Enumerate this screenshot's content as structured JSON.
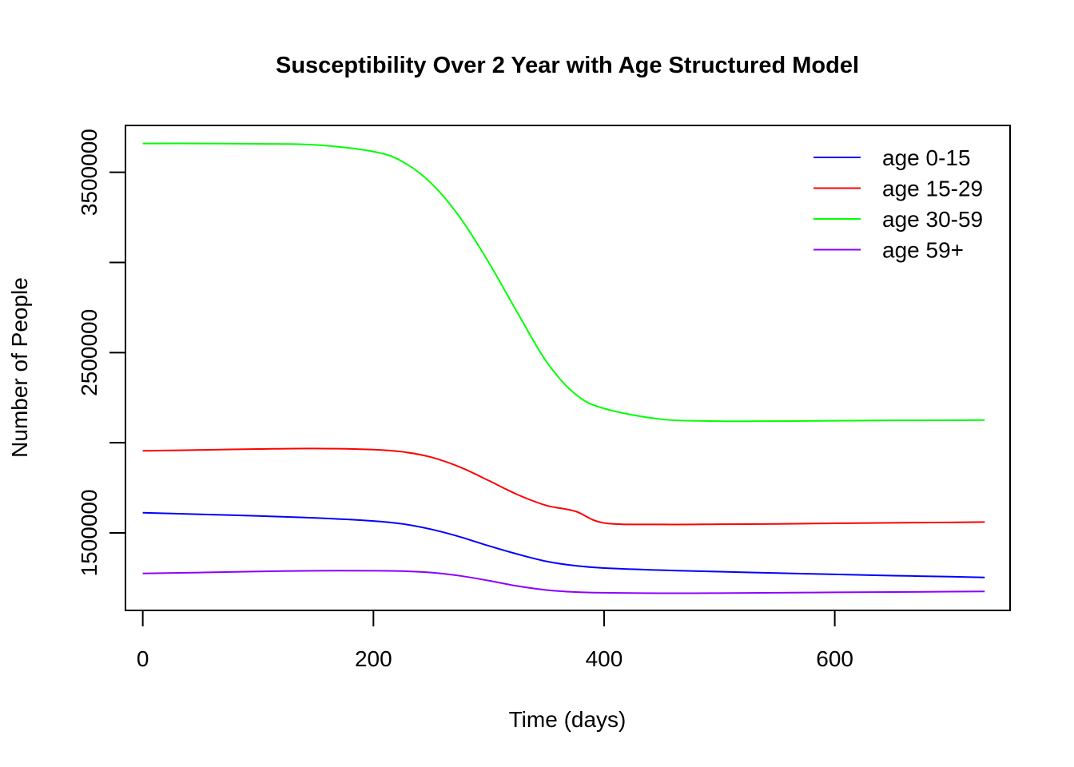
{
  "chart_data": {
    "type": "line",
    "title": "Susceptibility Over 2 Year with Age Structured Model",
    "xlabel": "Time (days)",
    "ylabel": "Number of People",
    "xlim": [
      -15,
      752
    ],
    "ylim": [
      1070000,
      3760000
    ],
    "xticks": [
      0,
      200,
      400,
      600
    ],
    "xtick_labels": [
      "0",
      "200",
      "400",
      "600"
    ],
    "yticks": [
      1500000,
      2000000,
      2500000,
      3000000,
      3500000
    ],
    "ytick_labels": [
      "1500000",
      "",
      "2500000",
      "",
      "3500000"
    ],
    "grid": false,
    "legend_position": "top-right",
    "x": [
      0,
      50,
      100,
      150,
      200,
      225,
      250,
      275,
      300,
      325,
      350,
      375,
      400,
      450,
      500,
      550,
      600,
      650,
      700,
      730
    ],
    "series": [
      {
        "name": "age 0-15",
        "color": "#0000ff",
        "values": [
          1612000,
          1603000,
          1594000,
          1583000,
          1566000,
          1550000,
          1520000,
          1478000,
          1428000,
          1382000,
          1342000,
          1318000,
          1305000,
          1293000,
          1285000,
          1277000,
          1270000,
          1263000,
          1257000,
          1253000
        ]
      },
      {
        "name": "age 15-29",
        "color": "#ff0000",
        "values": [
          1955000,
          1960000,
          1965000,
          1968000,
          1962000,
          1950000,
          1920000,
          1865000,
          1790000,
          1712000,
          1652000,
          1620000,
          1555000,
          1547000,
          1548000,
          1550000,
          1553000,
          1556000,
          1558000,
          1560000
        ]
      },
      {
        "name": "age 30-59",
        "color": "#00ff00",
        "values": [
          3660000,
          3660000,
          3658000,
          3652000,
          3615000,
          3560000,
          3440000,
          3250000,
          3000000,
          2720000,
          2450000,
          2270000,
          2190000,
          2130000,
          2120000,
          2120000,
          2122000,
          2124000,
          2125000,
          2126000
        ]
      },
      {
        "name": "age 59+",
        "color": "#8b00ff",
        "values": [
          1275000,
          1280000,
          1286000,
          1290000,
          1290000,
          1288000,
          1280000,
          1262000,
          1235000,
          1205000,
          1183000,
          1172000,
          1168000,
          1165000,
          1166000,
          1168000,
          1170000,
          1172000,
          1174000,
          1175000
        ]
      }
    ]
  }
}
